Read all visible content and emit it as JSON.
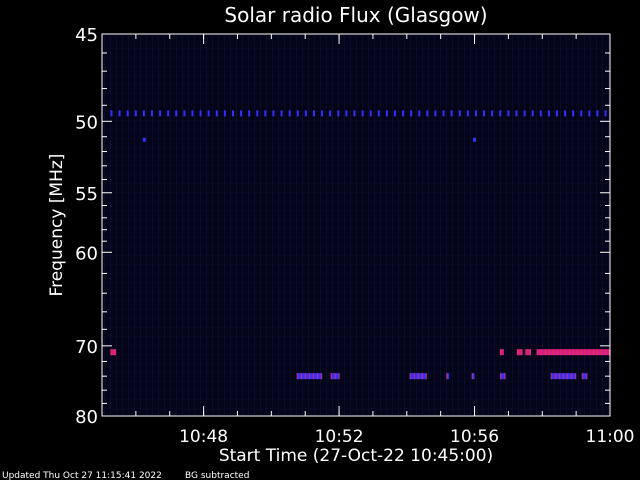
{
  "chart_data": {
    "type": "heatmap",
    "title": "Solar radio Flux (Glasgow)",
    "xlabel": "Start Time (27-Oct-22 10:45:00)",
    "ylabel": "Frequency [MHz]",
    "x_unit": "minutes",
    "xlim": [
      "10:45",
      "11:00"
    ],
    "ylim": [
      45,
      80
    ],
    "y_ticks": [
      "45",
      "50",
      "55",
      "60",
      "70",
      "80"
    ],
    "x_ticks": [
      "10:48",
      "10:52",
      "10:56",
      "11:00"
    ],
    "background_color": "#05051a",
    "emission_bands": [
      {
        "name": "49.5 MHz line",
        "y": 49.5,
        "x_start": "10:45:15",
        "x_end": "11:00",
        "color": "#3030ff",
        "dashed": true
      },
      {
        "name": "51.2 MHz spots",
        "y": 51.2,
        "points": [
          "10:46:15",
          "10:56:00"
        ],
        "color": "#3030ff"
      },
      {
        "name": "70.8 MHz band",
        "y": 70.8,
        "segments": [
          [
            "10:45:15",
            "10:45:25"
          ],
          [
            "10:56:45",
            "10:56:52"
          ],
          [
            "10:57:15",
            "10:57:25"
          ],
          [
            "10:57:30",
            "10:57:40"
          ],
          [
            "10:57:50",
            "11:00"
          ]
        ],
        "color": "#d0208a"
      },
      {
        "name": "74 MHz patches",
        "y": 74.0,
        "segments": [
          [
            "10:50:45",
            "10:51:30"
          ],
          [
            "10:51:45",
            "10:52:00"
          ],
          [
            "10:54:05",
            "10:54:35"
          ],
          [
            "10:55:10",
            "10:55:15"
          ],
          [
            "10:55:55",
            "10:56:00"
          ],
          [
            "10:56:45",
            "10:56:55"
          ],
          [
            "10:58:15",
            "10:59:00"
          ],
          [
            "10:59:10",
            "10:59:20"
          ]
        ],
        "color": "#3030ff"
      }
    ],
    "footer": "Updated Thu Oct 27 11:15:41 2022",
    "footer_note": "BG subtracted"
  }
}
